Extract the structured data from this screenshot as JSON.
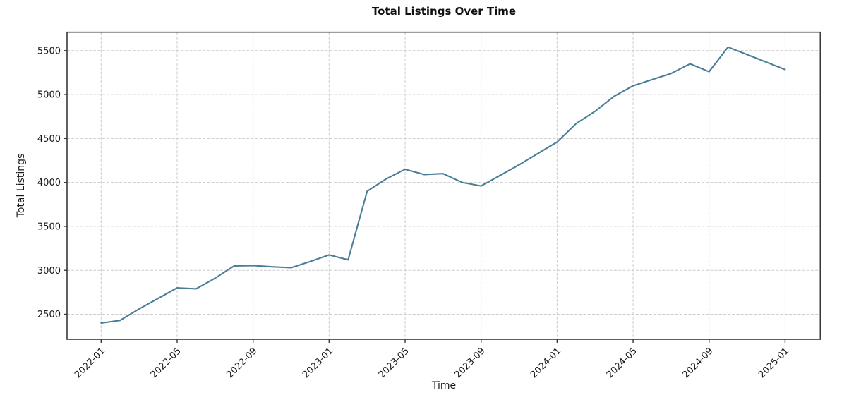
{
  "colors": {
    "background": "#ffffff",
    "grid": "#cccccc",
    "spine": "#383838",
    "text": "#1a1a1a",
    "title_text": "#111111"
  },
  "chart_data": {
    "type": "line",
    "title": "Total Listings Over Time",
    "xlabel": "Time",
    "ylabel": "Total Listings",
    "line_color": "#4a7e96",
    "grid": true,
    "legend": false,
    "ylim": [
      2220,
      5710
    ],
    "y_ticks": [
      2500,
      3000,
      3500,
      4000,
      4500,
      5000,
      5500
    ],
    "x_tick_every": 4,
    "x_tick_labels": [
      "2022-01",
      "2022-05",
      "2022-09",
      "2023-01",
      "2023-05",
      "2023-09",
      "2024-01",
      "2024-05",
      "2024-09",
      "2025-01"
    ],
    "x": [
      "2022-01",
      "2022-02",
      "2022-03",
      "2022-04",
      "2022-05",
      "2022-06",
      "2022-07",
      "2022-08",
      "2022-09",
      "2022-10",
      "2022-11",
      "2022-12",
      "2023-01",
      "2023-02",
      "2023-03",
      "2023-04",
      "2023-05",
      "2023-06",
      "2023-07",
      "2023-08",
      "2023-09",
      "2023-10",
      "2023-11",
      "2023-12",
      "2024-01",
      "2024-02",
      "2024-03",
      "2024-04",
      "2024-05",
      "2024-06",
      "2024-07",
      "2024-08",
      "2024-09",
      "2024-10",
      "2024-11",
      "2024-12",
      "2025-01"
    ],
    "values": [
      2400,
      2430,
      2560,
      2680,
      2800,
      2790,
      2910,
      3050,
      3055,
      3040,
      3030,
      3100,
      3175,
      3120,
      3900,
      4040,
      4150,
      4090,
      4100,
      4000,
      3960,
      4080,
      4200,
      4330,
      4460,
      4670,
      4810,
      4980,
      5100,
      5170,
      5240,
      5350,
      5260,
      5540,
      5455,
      5370,
      5285
    ]
  }
}
